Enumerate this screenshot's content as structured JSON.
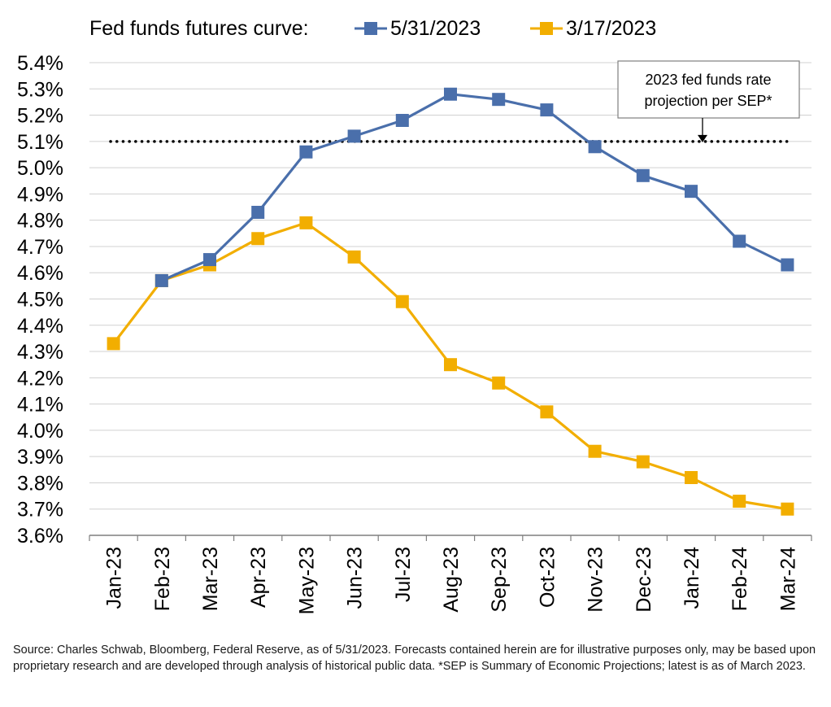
{
  "chart_data": {
    "type": "line",
    "legend_title": "Fed funds futures curve:",
    "legend_position": "top",
    "categories": [
      "Jan-23",
      "Feb-23",
      "Mar-23",
      "Apr-23",
      "May-23",
      "Jun-23",
      "Jul-23",
      "Aug-23",
      "Sep-23",
      "Oct-23",
      "Nov-23",
      "Dec-23",
      "Jan-24",
      "Feb-24",
      "Mar-24"
    ],
    "series": [
      {
        "name": "5/31/2023",
        "color": "#4a6fab",
        "values": [
          null,
          4.57,
          4.65,
          4.83,
          5.06,
          5.12,
          5.18,
          5.28,
          5.26,
          5.22,
          5.08,
          4.97,
          4.91,
          4.72,
          4.63
        ]
      },
      {
        "name": "3/17/2023",
        "color": "#f2ae00",
        "values": [
          4.33,
          4.57,
          4.63,
          4.73,
          4.79,
          4.66,
          4.49,
          4.25,
          4.18,
          4.07,
          3.92,
          3.88,
          3.82,
          3.73,
          3.7
        ]
      }
    ],
    "reference_line": {
      "value": 5.1,
      "style": "dotted",
      "color": "#000000"
    },
    "annotation": {
      "text_line1": "2023 fed funds rate",
      "text_line2": "projection per SEP*",
      "points_to": 5.1
    },
    "ylim": [
      3.6,
      5.4
    ],
    "yticks": [
      "5.4%",
      "5.3%",
      "5.2%",
      "5.1%",
      "5.0%",
      "4.9%",
      "4.8%",
      "4.7%",
      "4.6%",
      "4.5%",
      "4.4%",
      "4.3%",
      "4.2%",
      "4.1%",
      "4.0%",
      "3.9%",
      "3.8%",
      "3.7%",
      "3.6%"
    ],
    "grid": true,
    "xlabel": "",
    "ylabel": ""
  },
  "source_note": "Source: Charles Schwab, Bloomberg, Federal Reserve, as of 5/31/2023. Forecasts contained herein are for illustrative purposes only, may be based upon proprietary research and are developed through analysis of historical public data. *SEP is Summary of Economic Projections; latest is as of March 2023."
}
